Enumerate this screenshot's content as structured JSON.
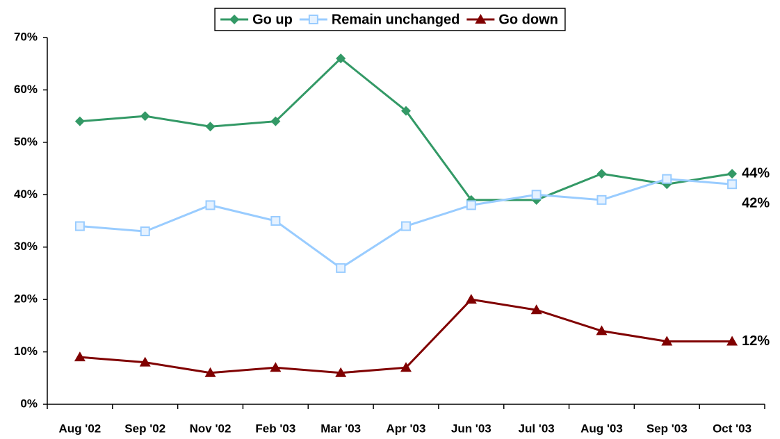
{
  "chart_data": {
    "type": "line",
    "categories": [
      "Aug '02",
      "Sep '02",
      "Nov '02",
      "Feb '03",
      "Mar '03",
      "Apr '03",
      "Jun '03",
      "Jul '03",
      "Aug '03",
      "Sep '03",
      "Oct '03"
    ],
    "series": [
      {
        "name": "Go up",
        "color": "#339966",
        "marker": "diamond",
        "values": [
          54,
          55,
          53,
          54,
          66,
          56,
          39,
          39,
          44,
          42,
          44
        ],
        "value_labels": [
          null,
          null,
          null,
          null,
          null,
          null,
          null,
          null,
          null,
          null,
          "44%"
        ]
      },
      {
        "name": "Remain unchanged",
        "color": "#99ccff",
        "marker": "square",
        "values": [
          34,
          33,
          38,
          35,
          26,
          34,
          38,
          40,
          39,
          43,
          42
        ],
        "value_labels": [
          null,
          null,
          null,
          null,
          null,
          null,
          null,
          null,
          null,
          null,
          "42%"
        ]
      },
      {
        "name": "Go down",
        "color": "#800000",
        "marker": "triangle",
        "values": [
          9,
          8,
          6,
          7,
          6,
          7,
          20,
          18,
          14,
          12,
          12
        ],
        "value_labels": [
          null,
          null,
          null,
          null,
          null,
          null,
          null,
          null,
          null,
          null,
          "12%"
        ]
      }
    ],
    "ylim": [
      0,
      70
    ],
    "yticks": [
      {
        "value": 0,
        "label": "0%"
      },
      {
        "value": 10,
        "label": "10%"
      },
      {
        "value": 20,
        "label": "20%"
      },
      {
        "value": 30,
        "label": "30%"
      },
      {
        "value": 40,
        "label": "40%"
      },
      {
        "value": 50,
        "label": "50%"
      },
      {
        "value": 60,
        "label": "60%"
      },
      {
        "value": 70,
        "label": "70%"
      }
    ],
    "legend": "top"
  }
}
